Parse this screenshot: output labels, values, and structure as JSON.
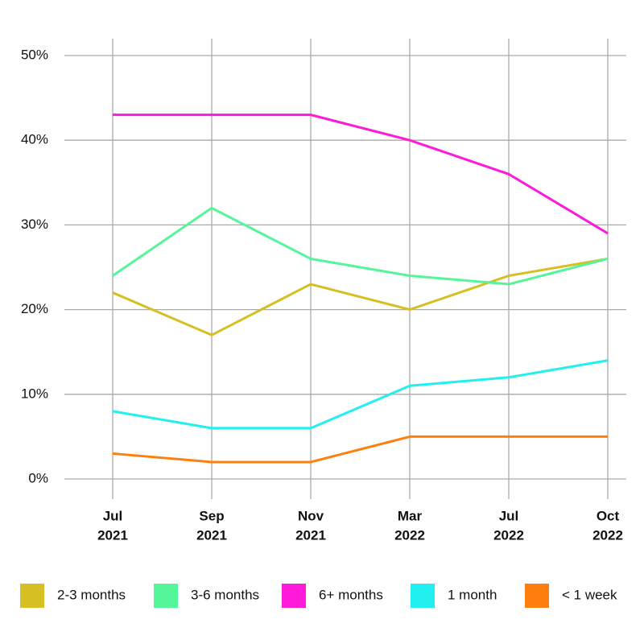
{
  "chart_data": {
    "type": "line",
    "categories": [
      [
        "Jul",
        "2021"
      ],
      [
        "Sep",
        "2021"
      ],
      [
        "Nov",
        "2021"
      ],
      [
        "Mar",
        "2022"
      ],
      [
        "Jul",
        "2022"
      ],
      [
        "Oct",
        "2022"
      ]
    ],
    "series": [
      {
        "name": "2-3 months",
        "color": "#d6bf22",
        "values": [
          22,
          17,
          23,
          20,
          24,
          26
        ]
      },
      {
        "name": "3-6 months",
        "color": "#55f59a",
        "values": [
          24,
          32,
          26,
          24,
          23,
          26
        ]
      },
      {
        "name": "6+ months",
        "color": "#ff1ad9",
        "values": [
          43,
          43,
          43,
          40,
          36,
          29
        ]
      },
      {
        "name": "1 month",
        "color": "#22f0f0",
        "values": [
          8,
          6,
          6,
          11,
          12,
          14
        ]
      },
      {
        "name": "< 1 week",
        "color": "#ff7f0e",
        "values": [
          3,
          2,
          2,
          5,
          5,
          5
        ]
      }
    ],
    "ylim": [
      0,
      50
    ],
    "yticks": [
      {
        "value": 0,
        "label": "0%"
      },
      {
        "value": 10,
        "label": "10%"
      },
      {
        "value": 20,
        "label": "20%"
      },
      {
        "value": 30,
        "label": "30%"
      },
      {
        "value": 40,
        "label": "40%"
      },
      {
        "value": 50,
        "label": "50%"
      }
    ],
    "grid": true,
    "legend": "bottom"
  }
}
